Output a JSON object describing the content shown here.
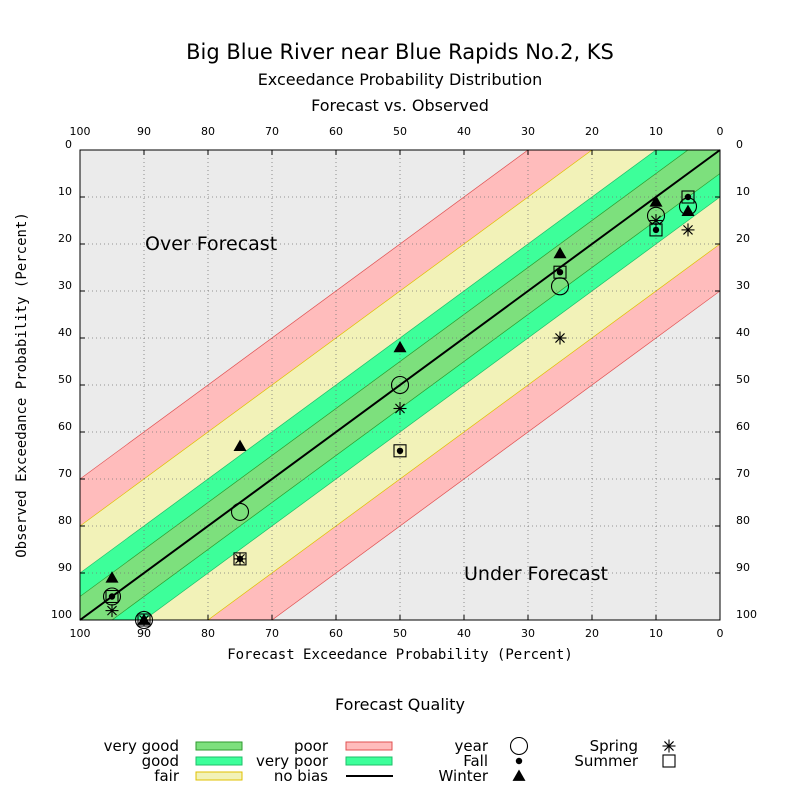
{
  "title": "Big Blue River near Blue Rapids No.2, KS",
  "subtitle1": "Exceedance Probability Distribution",
  "subtitle2": "Forecast vs. Observed",
  "chart_data": {
    "type": "scatter",
    "xlabel": "Forecast Exceedance Probability (Percent)",
    "ylabel": "Observed Exceedance Probability (Percent)",
    "xlim": [
      100,
      0
    ],
    "ylim": [
      100,
      0
    ],
    "ticks": [
      100,
      90,
      80,
      70,
      60,
      50,
      40,
      30,
      20,
      10,
      0
    ],
    "grid": true,
    "annotations": {
      "over": "Over Forecast",
      "under": "Under Forecast"
    },
    "bands": [
      {
        "name": "very good",
        "halfwidth": 5,
        "color": "#7de07d"
      },
      {
        "name": "very poor",
        "halfwidth": 10,
        "color": "#3dff9a"
      },
      {
        "name": "fair",
        "halfwidth": 20,
        "color": "#f2f2b8"
      },
      {
        "name": "poor",
        "halfwidth": 30,
        "color": "#ffbcbc"
      },
      {
        "name": "good",
        "color": "#3dff9a"
      },
      {
        "name": "no bias",
        "color": "#ebebeb"
      }
    ],
    "series": [
      {
        "name": "year",
        "marker": "circle-open",
        "points": [
          [
            95,
            95
          ],
          [
            90,
            100
          ],
          [
            75,
            77
          ],
          [
            50,
            50
          ],
          [
            25,
            29
          ],
          [
            10,
            14
          ],
          [
            5,
            12
          ]
        ]
      },
      {
        "name": "Fall",
        "marker": "dot",
        "points": [
          [
            95,
            95
          ],
          [
            90,
            100
          ],
          [
            75,
            87
          ],
          [
            50,
            64
          ],
          [
            25,
            26
          ],
          [
            10,
            17
          ],
          [
            5,
            10
          ]
        ]
      },
      {
        "name": "Winter",
        "marker": "triangle",
        "points": [
          [
            95,
            91
          ],
          [
            90,
            100
          ],
          [
            75,
            63
          ],
          [
            50,
            42
          ],
          [
            25,
            22
          ],
          [
            10,
            11
          ],
          [
            5,
            13
          ]
        ]
      },
      {
        "name": "Spring",
        "marker": "asterisk",
        "points": [
          [
            95,
            98
          ],
          [
            90,
            100
          ],
          [
            75,
            87
          ],
          [
            50,
            55
          ],
          [
            25,
            40
          ],
          [
            10,
            15
          ],
          [
            5,
            17
          ]
        ]
      },
      {
        "name": "Summer",
        "marker": "square-open",
        "points": [
          [
            95,
            95
          ],
          [
            90,
            100
          ],
          [
            75,
            87
          ],
          [
            50,
            64
          ],
          [
            25,
            26
          ],
          [
            10,
            17
          ],
          [
            5,
            10
          ]
        ]
      }
    ]
  },
  "legend": {
    "title": "Forecast Quality",
    "quality": [
      {
        "label": "very good",
        "color": "#7de07d",
        "border": "#2e9a2e"
      },
      {
        "label": "good",
        "color": "#3dff9a",
        "border": "#1fbf6a"
      },
      {
        "label": "fair",
        "color": "#f2f2b8",
        "border": "#e0c000"
      },
      {
        "label": "poor",
        "color": "#ffbcbc",
        "border": "#e05050"
      },
      {
        "label": "very poor",
        "color": "#3dff9a",
        "border": "#1fbf6a"
      },
      {
        "label": "no bias",
        "color": "#ebebeb",
        "border": "#bbbbbb"
      }
    ],
    "markers": [
      {
        "label": "year",
        "marker": "circle-open"
      },
      {
        "label": "Fall",
        "marker": "dot"
      },
      {
        "label": "Winter",
        "marker": "triangle"
      },
      {
        "label": "Spring",
        "marker": "asterisk"
      },
      {
        "label": "Summer",
        "marker": "square-open"
      }
    ]
  }
}
